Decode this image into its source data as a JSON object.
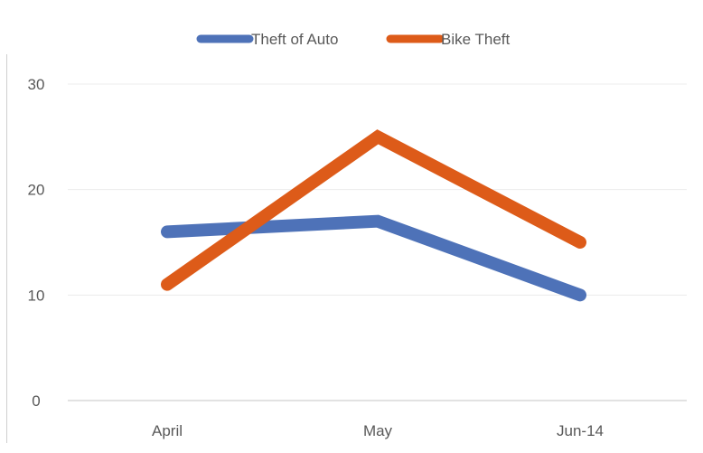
{
  "chart_data": {
    "type": "line",
    "categories": [
      "April",
      "May",
      "Jun-14"
    ],
    "series": [
      {
        "name": "Theft of Auto",
        "values": [
          16,
          17,
          10
        ],
        "color": "#4e72b8"
      },
      {
        "name": "Bike Theft",
        "values": [
          11,
          25,
          15
        ],
        "color": "#dd5b19"
      }
    ],
    "yticks": [
      0,
      10,
      20,
      30
    ],
    "ylim": [
      0,
      30
    ],
    "grid": true,
    "legend_position": "top-center"
  }
}
